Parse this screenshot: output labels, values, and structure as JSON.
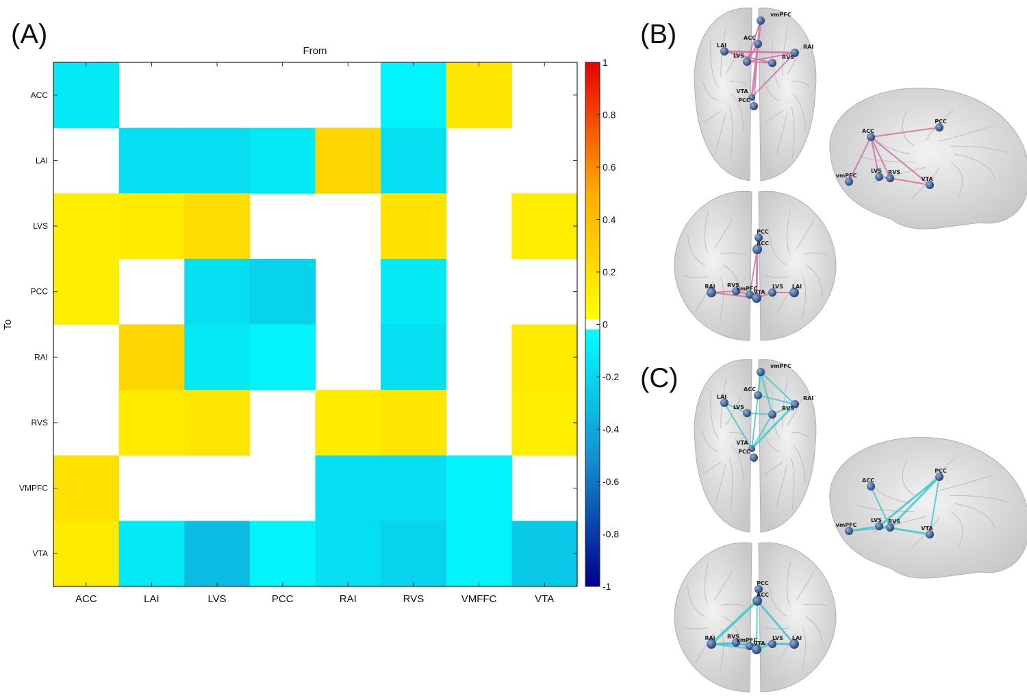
{
  "panel_labels": {
    "a": "(A)",
    "b": "(B)",
    "c": "(C)"
  },
  "chart_data": {
    "type": "heatmap",
    "title": "From",
    "xlabel": "From",
    "ylabel": "To",
    "x_categories": [
      "ACC",
      "LAI",
      "LVS",
      "PCC",
      "RAI",
      "RVS",
      "VMFFC",
      "VTA"
    ],
    "y_categories": [
      "ACC",
      "LAI",
      "LVS",
      "PCC",
      "RAI",
      "RVS",
      "VMPFC",
      "VTA"
    ],
    "values": [
      [
        -0.1,
        null,
        null,
        null,
        null,
        -0.05,
        0.15,
        null
      ],
      [
        null,
        -0.15,
        -0.15,
        -0.1,
        0.25,
        -0.15,
        null,
        null
      ],
      [
        0.1,
        0.12,
        0.2,
        null,
        null,
        0.17,
        null,
        0.1
      ],
      [
        0.1,
        null,
        -0.15,
        -0.2,
        null,
        -0.1,
        null,
        null
      ],
      [
        null,
        0.25,
        -0.1,
        -0.05,
        null,
        -0.15,
        null,
        0.12
      ],
      [
        null,
        0.12,
        0.15,
        null,
        0.12,
        0.15,
        null,
        0.1
      ],
      [
        0.18,
        null,
        null,
        null,
        -0.15,
        -0.15,
        -0.05,
        null
      ],
      [
        0.12,
        -0.1,
        -0.3,
        -0.05,
        -0.15,
        -0.2,
        -0.05,
        -0.25
      ]
    ],
    "colorbar": {
      "range": [
        -1,
        1
      ],
      "ticks": [
        "1",
        "0.8",
        "0.6",
        "0.4",
        "0.2",
        "0",
        "-0.2",
        "-0.4",
        "-0.6",
        "-0.8",
        "-1"
      ]
    },
    "grid": false
  },
  "colors": {
    "positive_edge": "#cf6fa0",
    "negative_edge": "#40c8cc",
    "node": "#3e5f96",
    "brain": "#d9d9d9"
  },
  "brains": {
    "b_top": {
      "labels": [
        "vmPFC",
        "ACC",
        "LAI",
        "RAI",
        "LVS",
        "RVS",
        "VTA",
        "PCC"
      ]
    },
    "b_side": {
      "labels": [
        "ACC",
        "PCC",
        "vmPFC",
        "LVS",
        "RVS",
        "VTA"
      ]
    },
    "b_front": {
      "labels": [
        "PCC",
        "ACC",
        "RAI",
        "RVS",
        "vmPFC",
        "VTA",
        "LVS",
        "LAI"
      ]
    },
    "c_top": {
      "labels": [
        "vmPFC",
        "ACC",
        "LAI",
        "RAI",
        "LVS",
        "RVS",
        "VTA",
        "PCC"
      ]
    },
    "c_side": {
      "labels": [
        "ACC",
        "PCC",
        "vmPFC",
        "LVS",
        "RVS",
        "VTA"
      ]
    },
    "c_front": {
      "labels": [
        "PCC",
        "ACC",
        "RAI",
        "RVS",
        "vmPFC",
        "VTA",
        "LVS",
        "LAI"
      ]
    }
  }
}
